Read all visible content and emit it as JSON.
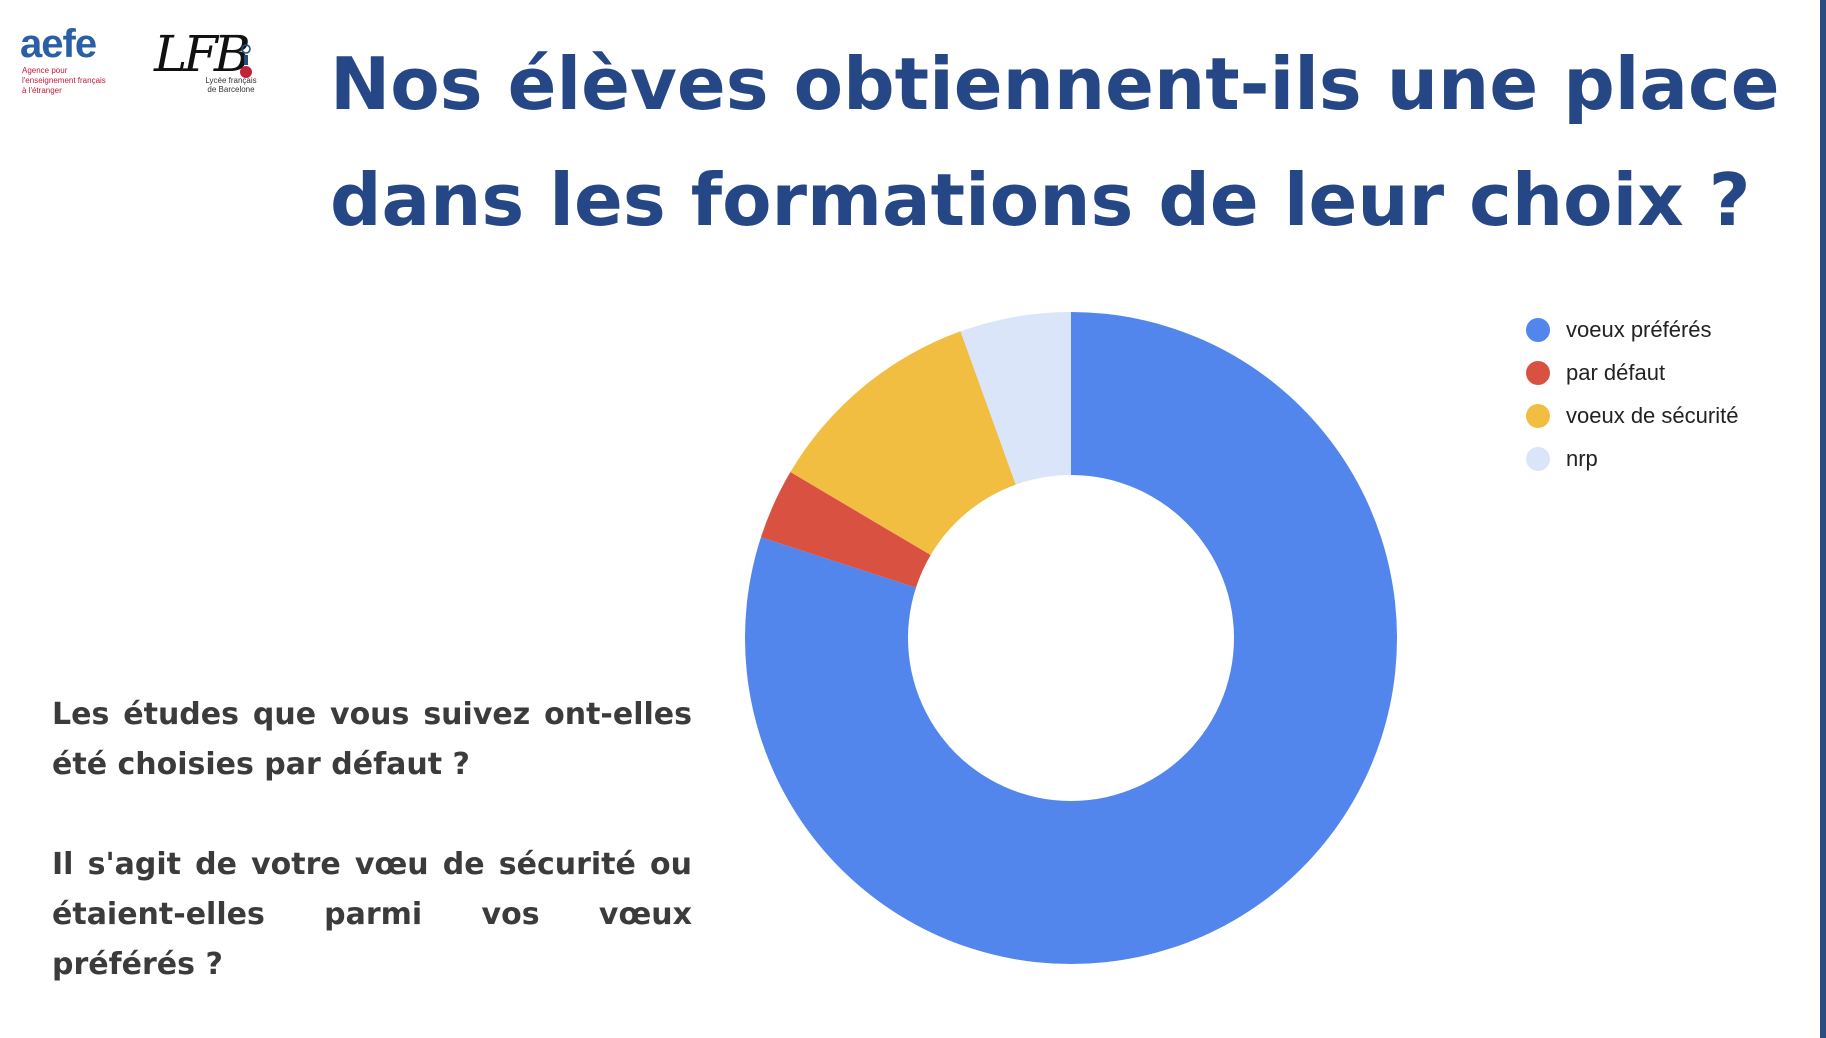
{
  "logos": {
    "aefe": {
      "word": "aefe",
      "lines": [
        "Agence pour",
        "l'enseignement français",
        "à l'étranger"
      ]
    },
    "lfb": {
      "word": "LFB",
      "lines": [
        "Lycée français",
        "de Barcelone"
      ]
    }
  },
  "title": {
    "line1": "Nos élèves obtiennent-ils une place",
    "line2": "dans les formations de leur choix  ?"
  },
  "question": {
    "p1": "Les études que vous suivez ont-elles été choisies par défaut ?",
    "p2": "Il s'agit de votre vœu de sécurité ou étaient-elles parmi vos vœux préférés ?"
  },
  "chart_data": {
    "type": "pie",
    "donut": true,
    "categories": [
      "voeux préférés",
      "par défaut",
      "voeux de sécurité",
      "nrp"
    ],
    "values": [
      80,
      3.5,
      11,
      5.5
    ],
    "colors": [
      "#5286ec",
      "#d95140",
      "#f1be42",
      "#dbe5fa"
    ],
    "legend_position": "top-right"
  }
}
